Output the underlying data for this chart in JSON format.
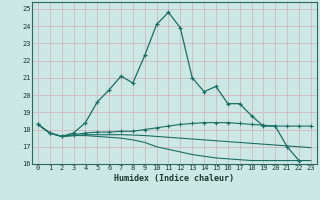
{
  "xlabel": "Humidex (Indice chaleur)",
  "bg_color": "#cce8e4",
  "grid_color": "#d4b8c0",
  "line_color": "#1a6e64",
  "xlim": [
    -0.5,
    23.5
  ],
  "ylim": [
    16,
    25.4
  ],
  "yticks": [
    16,
    17,
    18,
    19,
    20,
    21,
    22,
    23,
    24,
    25
  ],
  "xticks": [
    0,
    1,
    2,
    3,
    4,
    5,
    6,
    7,
    8,
    9,
    10,
    11,
    12,
    13,
    14,
    15,
    16,
    17,
    18,
    19,
    20,
    21,
    22,
    23
  ],
  "line1_x": [
    0,
    1,
    2,
    3,
    4,
    5,
    6,
    7,
    8,
    9,
    10,
    11,
    12,
    13,
    14,
    15,
    16,
    17,
    18,
    19,
    20,
    21,
    22
  ],
  "line1": [
    18.3,
    17.8,
    17.6,
    17.8,
    18.4,
    19.6,
    20.3,
    21.1,
    20.7,
    22.3,
    24.1,
    24.8,
    23.9,
    21.0,
    20.2,
    20.5,
    19.5,
    19.5,
    18.8,
    18.2,
    18.2,
    17.0,
    16.2
  ],
  "line2_x": [
    0,
    1,
    2,
    3,
    4,
    5,
    6,
    7,
    8,
    9,
    10,
    11,
    12,
    13,
    14,
    15,
    16,
    17,
    18,
    19,
    20,
    21,
    22,
    23
  ],
  "line2": [
    18.3,
    17.8,
    17.6,
    17.7,
    17.8,
    17.85,
    17.85,
    17.9,
    17.9,
    18.0,
    18.1,
    18.2,
    18.3,
    18.35,
    18.4,
    18.4,
    18.4,
    18.35,
    18.3,
    18.25,
    18.2,
    18.2,
    18.2,
    18.2
  ],
  "line3_x": [
    0,
    1,
    2,
    3,
    4,
    5,
    6,
    7,
    8,
    9,
    10,
    11,
    12,
    13,
    14,
    15,
    16,
    17,
    18,
    19,
    20,
    21,
    22,
    23
  ],
  "line3": [
    18.3,
    17.8,
    17.6,
    17.65,
    17.7,
    17.7,
    17.7,
    17.7,
    17.68,
    17.65,
    17.6,
    17.55,
    17.5,
    17.45,
    17.4,
    17.35,
    17.3,
    17.25,
    17.2,
    17.15,
    17.1,
    17.05,
    17.0,
    16.95
  ],
  "line4_x": [
    0,
    1,
    2,
    3,
    4,
    5,
    6,
    7,
    8,
    9,
    10,
    11,
    12,
    13,
    14,
    15,
    16,
    17,
    18,
    19,
    20,
    21,
    22,
    23
  ],
  "line4": [
    18.3,
    17.8,
    17.6,
    17.65,
    17.65,
    17.6,
    17.55,
    17.5,
    17.4,
    17.25,
    17.0,
    16.85,
    16.7,
    16.55,
    16.45,
    16.35,
    16.3,
    16.25,
    16.2,
    16.2,
    16.2,
    16.2,
    16.2,
    16.2
  ]
}
